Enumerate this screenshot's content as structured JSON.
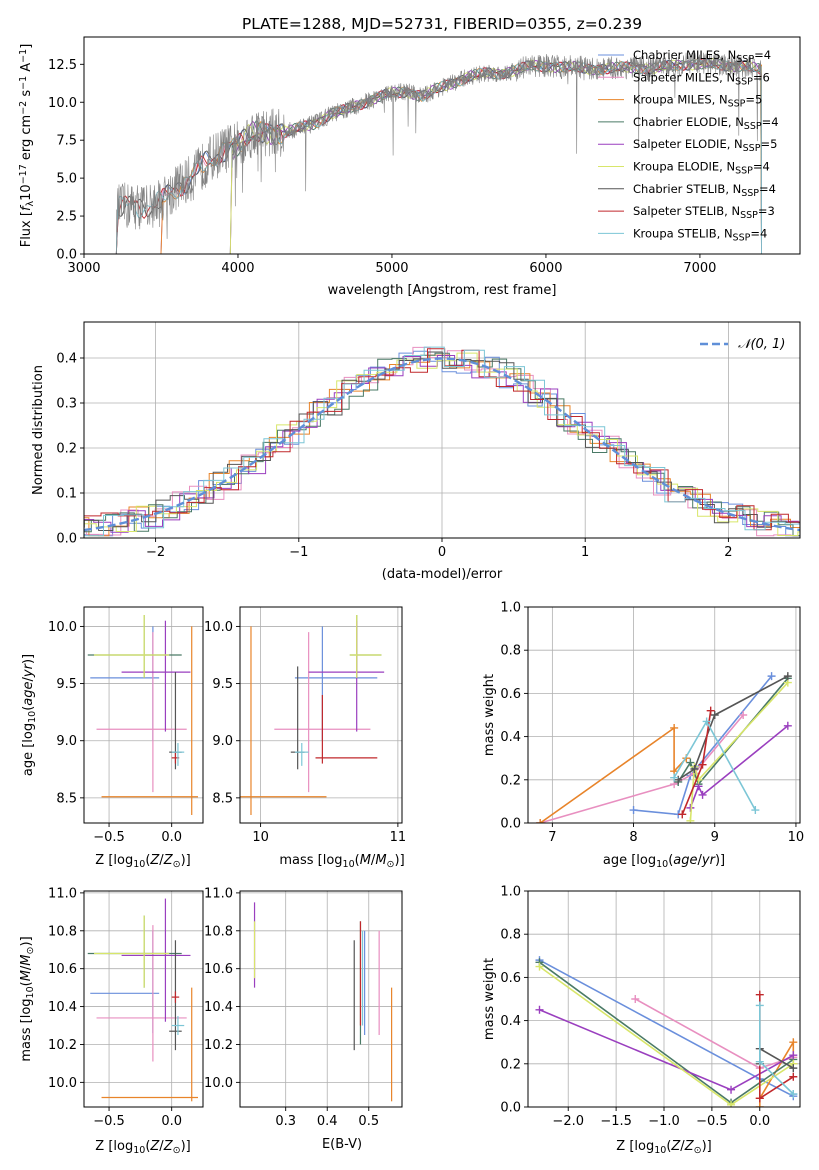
{
  "figure_title": "PLATE=1288, MJD=52731, FIBERID=0355, z=0.239",
  "series_colors": [
    "#6a8fdc",
    "#e88fc0",
    "#e8842a",
    "#4a7a66",
    "#9a3fbf",
    "#d8e66a",
    "#555555",
    "#c0282c",
    "#7cc6d6"
  ],
  "chart_data": [
    {
      "type": "line",
      "id": "spectrum",
      "title": "PLATE=1288, MJD=52731, FIBERID=0355, z=0.239",
      "xlabel": "wavelength [Angstrom, rest frame]",
      "ylabel": "Flux [f_λ 10^-17 erg cm^-2 s^-1 A^-1]",
      "ylabel_parts": {
        "base": "Flux [",
        "f": "f",
        "lam": "λ",
        "ten": "10",
        "exp1": "−17",
        "mid": " erg cm",
        "exp2": "−2",
        "s": " s",
        "exp3": "−1",
        "end": " A",
        "exp4": "−1",
        "close": "]"
      },
      "xlim": [
        3000,
        7650
      ],
      "ylim": [
        0,
        14.3
      ],
      "xticks": [
        3000,
        4000,
        5000,
        6000,
        7000
      ],
      "yticks": [
        0.0,
        2.5,
        5.0,
        7.5,
        10.0,
        12.5
      ],
      "ytick_labels": [
        "0.0",
        "2.5",
        "5.0",
        "7.5",
        "10.0",
        "12.5"
      ],
      "data_color": "#808080",
      "data_points": [
        [
          3210,
          0
        ],
        [
          3215,
          3.0
        ],
        [
          3300,
          3.2
        ],
        [
          3400,
          3.1
        ],
        [
          3500,
          3.4
        ],
        [
          3600,
          4.4
        ],
        [
          3700,
          5.0
        ],
        [
          3800,
          6.1
        ],
        [
          3900,
          6.8
        ],
        [
          4000,
          7.2
        ],
        [
          4100,
          8.0
        ],
        [
          4200,
          8.0
        ],
        [
          4300,
          8.0
        ],
        [
          4400,
          8.3
        ],
        [
          4500,
          8.6
        ],
        [
          4600,
          9.2
        ],
        [
          4700,
          9.5
        ],
        [
          4800,
          9.9
        ],
        [
          4900,
          10.3
        ],
        [
          5000,
          10.6
        ],
        [
          5100,
          10.7
        ],
        [
          5200,
          10.4
        ],
        [
          5300,
          10.9
        ],
        [
          5400,
          11.3
        ],
        [
          5500,
          11.7
        ],
        [
          5600,
          11.9
        ],
        [
          5700,
          11.9
        ],
        [
          5800,
          12.1
        ],
        [
          5900,
          12.4
        ],
        [
          6000,
          12.4
        ],
        [
          6100,
          12.3
        ],
        [
          6200,
          12.3
        ],
        [
          6300,
          12.2
        ],
        [
          6400,
          12.2
        ],
        [
          6500,
          12.3
        ],
        [
          6600,
          12.3
        ],
        [
          6700,
          12.2
        ],
        [
          6800,
          12.4
        ],
        [
          6900,
          12.5
        ],
        [
          7000,
          12.5
        ],
        [
          7100,
          12.5
        ],
        [
          7200,
          12.4
        ],
        [
          7300,
          12.4
        ],
        [
          7400,
          12.1
        ]
      ],
      "legend_position": "upper-right",
      "legend": [
        {
          "imf": "Chabrier MILES",
          "n": "4"
        },
        {
          "imf": "Salpeter MILES",
          "n": "6"
        },
        {
          "imf": "Kroupa MILES",
          "n": "5"
        },
        {
          "imf": "Chabrier ELODIE",
          "n": "4"
        },
        {
          "imf": "Salpeter ELODIE",
          "n": "5"
        },
        {
          "imf": "Kroupa ELODIE",
          "n": "4"
        },
        {
          "imf": "Chabrier STELIB",
          "n": "4"
        },
        {
          "imf": "Salpeter STELIB",
          "n": "3"
        },
        {
          "imf": "Kroupa STELIB",
          "n": "4"
        }
      ],
      "legend_n_label": "N",
      "legend_n_sub": "SSP",
      "model_ranges": [
        [
          3500,
          7400
        ],
        [
          3500,
          7400
        ],
        [
          3500,
          7400
        ],
        [
          3950,
          7400
        ],
        [
          3950,
          7400
        ],
        [
          3950,
          7400
        ],
        [
          3210,
          7400
        ],
        [
          3210,
          7400
        ],
        [
          3210,
          7400
        ]
      ]
    },
    {
      "type": "histogram",
      "id": "residuals",
      "xlabel": "(data-model)/error",
      "ylabel": "Normed distribution",
      "xlim": [
        -2.5,
        2.5
      ],
      "ylim": [
        0,
        0.48
      ],
      "xticks": [
        -2,
        -1,
        0,
        1,
        2
      ],
      "xtick_labels": [
        "−2",
        "−1",
        "0",
        "1",
        "2"
      ],
      "yticks": [
        0.0,
        0.1,
        0.2,
        0.3,
        0.4
      ],
      "ytick_labels": [
        "0.0",
        "0.1",
        "0.2",
        "0.3",
        "0.4"
      ],
      "grid": true,
      "legend_position": "upper-right",
      "reference_curve": {
        "label": "𝒩(0, 1)",
        "mean": 0,
        "sigma": 1,
        "color": "#5f8fd8"
      }
    },
    {
      "type": "errorbar",
      "id": "age-vs-z",
      "xlabel": "Z [log10(Z/Z⊙)]",
      "ylabel": "age [log10(age/yr)]",
      "xlim": [
        -0.7,
        0.25
      ],
      "ylim": [
        8.28,
        10.17
      ],
      "xticks": [
        -0.5,
        0.0
      ],
      "xtick_labels": [
        "−0.5",
        "0.0"
      ],
      "yticks": [
        8.5,
        9.0,
        9.5,
        10.0
      ],
      "ytick_labels": [
        "8.5",
        "9.0",
        "9.5",
        "10.0"
      ],
      "grid": true,
      "points": [
        {
          "x": -0.15,
          "xerr": [
            0.5,
            0.05
          ],
          "y": 9.55,
          "yerr": [
            0.55,
            0.45
          ]
        },
        {
          "x": -0.15,
          "xerr": [
            0.45,
            0.27
          ],
          "y": 9.1,
          "yerr": [
            0.55,
            0.85
          ]
        },
        {
          "x": 0.16,
          "xerr": [
            0.72,
            0.05
          ],
          "y": 8.51,
          "yerr": [
            0.16,
            1.49
          ]
        },
        {
          "x": -0.22,
          "xerr": [
            0.45,
            0.3
          ],
          "y": 9.75,
          "yerr": [
            0.2,
            0.35
          ]
        },
        {
          "x": -0.05,
          "xerr": [
            0.35,
            0.2
          ],
          "y": 9.6,
          "yerr": [
            0.52,
            0.45
          ]
        },
        {
          "x": -0.22,
          "xerr": [
            0.4,
            0.2
          ],
          "y": 9.75,
          "yerr": [
            0.2,
            0.35
          ]
        },
        {
          "x": 0.03,
          "xerr": [
            0.05,
            0.05
          ],
          "y": 8.9,
          "yerr": [
            0.15,
            0.7
          ]
        },
        {
          "x": 0.03,
          "xerr": [
            0.03,
            0.03
          ],
          "y": 8.85,
          "yerr": [
            0.05,
            0.05
          ]
        },
        {
          "x": 0.05,
          "xerr": [
            0.05,
            0.05
          ],
          "y": 8.9,
          "yerr": [
            0.12,
            0.08
          ]
        }
      ]
    },
    {
      "type": "errorbar",
      "id": "age-vs-mass",
      "xlabel": "mass [log10(M/M⊙)]",
      "xlim": [
        9.85,
        11.03
      ],
      "ylim": [
        8.28,
        10.17
      ],
      "xticks": [
        10,
        11
      ],
      "xtick_labels": [
        "10",
        "11"
      ],
      "yticks": [
        8.5,
        9.0,
        9.5,
        10.0
      ],
      "ytick_labels": [
        "8.5",
        "9.0",
        "9.5",
        "10.0"
      ],
      "grid": true,
      "points": [
        {
          "x": 10.45,
          "xerr": [
            0.2,
            0.4
          ],
          "y": 9.55,
          "yerr": [
            0.55,
            0.45
          ]
        },
        {
          "x": 10.35,
          "xerr": [
            0.25,
            0.45
          ],
          "y": 9.1,
          "yerr": [
            0.55,
            0.85
          ]
        },
        {
          "x": 9.93,
          "xerr": [
            0.1,
            0.55
          ],
          "y": 8.51,
          "yerr": [
            0.16,
            1.49
          ]
        },
        {
          "x": 10.7,
          "xerr": [
            0.05,
            0.18
          ],
          "y": 9.75,
          "yerr": [
            0.2,
            0.35
          ]
        },
        {
          "x": 10.7,
          "xerr": [
            0.35,
            0.2
          ],
          "y": 9.6,
          "yerr": [
            0.52,
            0.45
          ]
        },
        {
          "x": 10.7,
          "xerr": [
            0.05,
            0.18
          ],
          "y": 9.75,
          "yerr": [
            0.2,
            0.35
          ]
        },
        {
          "x": 10.27,
          "xerr": [
            0.05,
            0.05
          ],
          "y": 8.9,
          "yerr": [
            0.15,
            0.75
          ]
        },
        {
          "x": 10.45,
          "xerr": [
            0.05,
            0.4
          ],
          "y": 8.85,
          "yerr": [
            0.05,
            0.55
          ]
        },
        {
          "x": 10.3,
          "xerr": [
            0.05,
            0.05
          ],
          "y": 8.9,
          "yerr": [
            0.12,
            0.08
          ]
        }
      ]
    },
    {
      "type": "line",
      "id": "mass-weight-vs-age",
      "xlabel": "age [log10(age/yr)]",
      "ylabel": "mass weight",
      "xlim": [
        6.7,
        10.05
      ],
      "ylim": [
        0,
        1.0
      ],
      "xticks": [
        7,
        8,
        9,
        10
      ],
      "xtick_labels": [
        "7",
        "8",
        "9",
        "10"
      ],
      "yticks": [
        0.0,
        0.2,
        0.4,
        0.6,
        0.8,
        1.0
      ],
      "ytick_labels": [
        "0.0",
        "0.2",
        "0.4",
        "0.6",
        "0.8",
        "1.0"
      ],
      "grid": true,
      "series": [
        {
          "x": [
            8.0,
            8.55,
            8.7,
            9.7
          ],
          "y": [
            0.06,
            0.04,
            0.22,
            0.68
          ]
        },
        {
          "x": [
            6.85,
            8.5,
            8.75,
            9.35
          ],
          "y": [
            0.0,
            0.18,
            0.23,
            0.5
          ]
        },
        {
          "x": [
            6.85,
            8.5,
            8.5,
            8.65
          ],
          "y": [
            0.0,
            0.44,
            0.24,
            0.3
          ]
        },
        {
          "x": [
            8.55,
            8.7,
            8.8,
            9.9
          ],
          "y": [
            0.19,
            0.28,
            0.18,
            0.67
          ]
        },
        {
          "x": [
            8.7,
            8.8,
            8.85,
            9.9
          ],
          "y": [
            0.07,
            0.17,
            0.13,
            0.45
          ]
        },
        {
          "x": [
            8.7,
            8.75,
            8.8,
            9.9
          ],
          "y": [
            0.01,
            0.26,
            0.2,
            0.65
          ]
        },
        {
          "x": [
            8.55,
            8.75,
            9.0,
            9.9
          ],
          "y": [
            0.2,
            0.25,
            0.5,
            0.68
          ]
        },
        {
          "x": [
            8.6,
            8.85,
            8.95
          ],
          "y": [
            0.04,
            0.27,
            0.52
          ]
        },
        {
          "x": [
            8.5,
            8.9,
            9.5
          ],
          "y": [
            0.21,
            0.47,
            0.06
          ]
        }
      ]
    },
    {
      "type": "errorbar",
      "id": "mass-vs-z",
      "xlabel": "Z [log10(Z/Z⊙)]",
      "ylabel": "mass [log10(M/M⊙)]",
      "xlim": [
        -0.7,
        0.25
      ],
      "ylim": [
        9.87,
        11.01
      ],
      "xticks": [
        -0.5,
        0.0
      ],
      "xtick_labels": [
        "−0.5",
        "0.0"
      ],
      "yticks": [
        10.0,
        10.2,
        10.4,
        10.6,
        10.8,
        11.0
      ],
      "ytick_labels": [
        "10.0",
        "10.2",
        "10.4",
        "10.6",
        "10.8",
        "11.0"
      ],
      "grid": true,
      "points": [
        {
          "x": -0.15,
          "xerr": [
            0.5,
            0.05
          ],
          "y": 10.47,
          "yerr": [
            0.21,
            0.33
          ]
        },
        {
          "x": -0.15,
          "xerr": [
            0.45,
            0.27
          ],
          "y": 10.34,
          "yerr": [
            0.23,
            0.49
          ]
        },
        {
          "x": 0.16,
          "xerr": [
            0.72,
            0.05
          ],
          "y": 9.92,
          "yerr": [
            0.02,
            0.58
          ]
        },
        {
          "x": -0.22,
          "xerr": [
            0.45,
            0.3
          ],
          "y": 10.68,
          "yerr": [
            0.18,
            0.2
          ]
        },
        {
          "x": -0.05,
          "xerr": [
            0.35,
            0.2
          ],
          "y": 10.67,
          "yerr": [
            0.35,
            0.3
          ]
        },
        {
          "x": -0.22,
          "xerr": [
            0.4,
            0.2
          ],
          "y": 10.68,
          "yerr": [
            0.18,
            0.2
          ]
        },
        {
          "x": 0.03,
          "xerr": [
            0.05,
            0.05
          ],
          "y": 10.27,
          "yerr": [
            0.1,
            0.48
          ]
        },
        {
          "x": 0.03,
          "xerr": [
            0.03,
            0.03
          ],
          "y": 10.45,
          "yerr": [
            0.03,
            0.03
          ]
        },
        {
          "x": 0.05,
          "xerr": [
            0.05,
            0.05
          ],
          "y": 10.3,
          "yerr": [
            0.05,
            0.05
          ]
        }
      ]
    },
    {
      "type": "errorbar",
      "id": "mass-vs-ebv",
      "xlabel": "E(B-V)",
      "xlim": [
        0.19,
        0.58
      ],
      "ylim": [
        9.87,
        11.01
      ],
      "xticks": [
        0.3,
        0.4,
        0.5
      ],
      "xtick_labels": [
        "0.3",
        "0.4",
        "0.5"
      ],
      "yticks": [
        10.0,
        10.2,
        10.4,
        10.6,
        10.8,
        11.0
      ],
      "ytick_labels": [
        "10.0",
        "10.2",
        "10.4",
        "10.6",
        "10.8",
        "11.0"
      ],
      "grid": true,
      "points": [
        {
          "x": 0.49,
          "y": 10.5,
          "yerr": [
            0.25,
            0.3
          ]
        },
        {
          "x": 0.525,
          "y": 10.5,
          "yerr": [
            0.25,
            0.3
          ]
        },
        {
          "x": 0.555,
          "y": 10.2,
          "yerr": [
            0.3,
            0.3
          ]
        },
        {
          "x": 0.48,
          "y": 10.55,
          "yerr": [
            0.35,
            0.3
          ]
        },
        {
          "x": 0.225,
          "y": 10.85,
          "yerr": [
            0.35,
            0.1
          ]
        },
        {
          "x": 0.225,
          "y": 10.65,
          "yerr": [
            0.1,
            0.2
          ]
        },
        {
          "x": 0.465,
          "y": 10.45,
          "yerr": [
            0.28,
            0.3
          ]
        },
        {
          "x": 0.48,
          "y": 10.55,
          "yerr": [
            0.25,
            0.3
          ]
        },
        {
          "x": 0.485,
          "y": 10.5,
          "yerr": [
            0.2,
            0.3
          ]
        }
      ]
    },
    {
      "type": "line",
      "id": "mass-weight-vs-z",
      "xlabel": "Z [log10(Z/Z⊙)]",
      "ylabel": "mass weight",
      "xlim": [
        -2.42,
        0.42
      ],
      "ylim": [
        0,
        1.0
      ],
      "xticks": [
        -2.0,
        -1.5,
        -1.0,
        -0.5,
        0.0
      ],
      "xtick_labels": [
        "−2.0",
        "−1.5",
        "−1.0",
        "−0.5",
        "0.0"
      ],
      "yticks": [
        0.0,
        0.2,
        0.4,
        0.6,
        0.8,
        1.0
      ],
      "ytick_labels": [
        "0.0",
        "0.2",
        "0.4",
        "0.6",
        "0.8",
        "1.0"
      ],
      "grid": true,
      "series": [
        {
          "x": [
            -2.3,
            0.0,
            0.35,
            0.35
          ],
          "y": [
            0.68,
            0.13,
            0.05,
            0.06
          ]
        },
        {
          "x": [
            -1.3,
            0.0,
            0.35
          ],
          "y": [
            0.5,
            0.18,
            0.23
          ]
        },
        {
          "x": [
            0.0,
            0.0,
            0.35,
            0.35
          ],
          "y": [
            0.0,
            0.04,
            0.3,
            0.2
          ]
        },
        {
          "x": [
            -2.3,
            -0.3,
            0.35
          ],
          "y": [
            0.67,
            0.02,
            0.22
          ]
        },
        {
          "x": [
            -2.3,
            -0.3,
            0.35
          ],
          "y": [
            0.45,
            0.08,
            0.24
          ]
        },
        {
          "x": [
            -2.3,
            -0.3,
            0.35
          ],
          "y": [
            0.65,
            0.01,
            0.2
          ]
        },
        {
          "x": [
            0.0,
            0.0,
            0.35
          ],
          "y": [
            0.2,
            0.27,
            0.18
          ]
        },
        {
          "x": [
            0.0,
            0.0,
            0.35
          ],
          "y": [
            0.52,
            0.04,
            0.14
          ]
        },
        {
          "x": [
            0.0,
            0.0,
            0.35
          ],
          "y": [
            0.47,
            0.21,
            0.06
          ]
        }
      ]
    }
  ]
}
